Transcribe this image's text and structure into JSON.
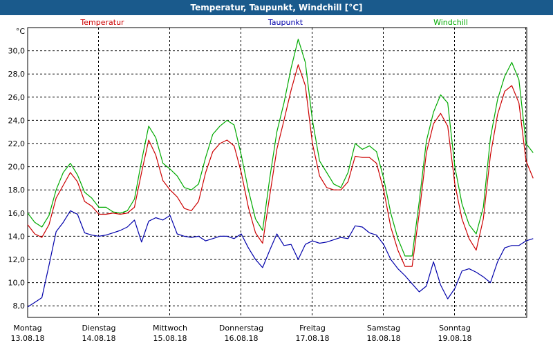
{
  "window": {
    "title": "Temperatur, Taupunkt, Windchill [°C]"
  },
  "chart_data": {
    "type": "line",
    "title": "Temperatur, Taupunkt, Windchill [°C]",
    "ylabel": "°C",
    "ylim": [
      7,
      32
    ],
    "yticks": [
      8.0,
      10.0,
      12.0,
      14.0,
      16.0,
      18.0,
      20.0,
      22.0,
      24.0,
      26.0,
      28.0,
      30.0
    ],
    "ytick_labels": [
      "8,0",
      "10,0",
      "12,0",
      "14,0",
      "16,0",
      "18,0",
      "20,0",
      "22,0",
      "24,0",
      "26,0",
      "28,0",
      "30,0"
    ],
    "xlim": [
      0,
      7
    ],
    "x_day_ticks": [
      {
        "x": 0,
        "day": "Montag",
        "date": "13.08.18"
      },
      {
        "x": 1,
        "day": "Dienstag",
        "date": "14.08.18"
      },
      {
        "x": 2,
        "day": "Mittwoch",
        "date": "15.08.18"
      },
      {
        "x": 3,
        "day": "Donnerstag",
        "date": "16.08.18"
      },
      {
        "x": 4,
        "day": "Freitag",
        "date": "17.08.18"
      },
      {
        "x": 5,
        "day": "Samstag",
        "date": "18.08.18"
      },
      {
        "x": 6,
        "day": "Sonntag",
        "date": "19.08.18"
      }
    ],
    "grid": true,
    "legend_placement": "top",
    "series": [
      {
        "name": "Temperatur",
        "color": "#cc0000",
        "points": [
          [
            0.0,
            15.0
          ],
          [
            0.1,
            14.2
          ],
          [
            0.2,
            13.9
          ],
          [
            0.3,
            15.0
          ],
          [
            0.4,
            17.3
          ],
          [
            0.5,
            18.4
          ],
          [
            0.6,
            19.5
          ],
          [
            0.7,
            18.7
          ],
          [
            0.8,
            17.0
          ],
          [
            0.9,
            16.6
          ],
          [
            1.0,
            15.9
          ],
          [
            1.1,
            15.9
          ],
          [
            1.2,
            16.0
          ],
          [
            1.3,
            15.9
          ],
          [
            1.4,
            16.0
          ],
          [
            1.5,
            16.5
          ],
          [
            1.6,
            19.5
          ],
          [
            1.7,
            22.3
          ],
          [
            1.8,
            21.0
          ],
          [
            1.9,
            18.8
          ],
          [
            2.0,
            18.0
          ],
          [
            2.1,
            17.4
          ],
          [
            2.2,
            16.4
          ],
          [
            2.3,
            16.2
          ],
          [
            2.4,
            17.0
          ],
          [
            2.5,
            19.5
          ],
          [
            2.6,
            21.3
          ],
          [
            2.7,
            22.0
          ],
          [
            2.8,
            22.3
          ],
          [
            2.9,
            21.8
          ],
          [
            3.0,
            19.5
          ],
          [
            3.1,
            16.5
          ],
          [
            3.2,
            14.3
          ],
          [
            3.3,
            13.4
          ],
          [
            3.4,
            17.5
          ],
          [
            3.5,
            21.5
          ],
          [
            3.6,
            24.0
          ],
          [
            3.7,
            26.6
          ],
          [
            3.8,
            28.8
          ],
          [
            3.9,
            27.0
          ],
          [
            4.0,
            22.0
          ],
          [
            4.1,
            19.2
          ],
          [
            4.2,
            18.2
          ],
          [
            4.3,
            18.0
          ],
          [
            4.4,
            18.0
          ],
          [
            4.5,
            18.7
          ],
          [
            4.6,
            20.9
          ],
          [
            4.7,
            20.8
          ],
          [
            4.8,
            20.8
          ],
          [
            4.9,
            20.3
          ],
          [
            5.0,
            18.0
          ],
          [
            5.1,
            14.8
          ],
          [
            5.2,
            12.8
          ],
          [
            5.3,
            11.4
          ],
          [
            5.4,
            11.4
          ],
          [
            5.5,
            16.0
          ],
          [
            5.6,
            21.2
          ],
          [
            5.7,
            23.7
          ],
          [
            5.8,
            24.6
          ],
          [
            5.9,
            23.5
          ],
          [
            6.0,
            18.5
          ],
          [
            6.1,
            15.5
          ],
          [
            6.2,
            13.8
          ],
          [
            6.3,
            12.8
          ],
          [
            6.4,
            15.5
          ],
          [
            6.5,
            21.0
          ],
          [
            6.6,
            24.5
          ],
          [
            6.7,
            26.5
          ],
          [
            6.8,
            27.0
          ],
          [
            6.9,
            25.5
          ],
          [
            7.0,
            20.5
          ],
          [
            7.1,
            19.0
          ]
        ]
      },
      {
        "name": "Taupunkt",
        "color": "#0000aa",
        "points": [
          [
            0.0,
            7.9
          ],
          [
            0.1,
            8.3
          ],
          [
            0.2,
            8.7
          ],
          [
            0.3,
            11.5
          ],
          [
            0.4,
            14.4
          ],
          [
            0.5,
            15.2
          ],
          [
            0.6,
            16.2
          ],
          [
            0.7,
            15.9
          ],
          [
            0.8,
            14.3
          ],
          [
            0.9,
            14.1
          ],
          [
            1.0,
            14.0
          ],
          [
            1.1,
            14.1
          ],
          [
            1.2,
            14.3
          ],
          [
            1.3,
            14.5
          ],
          [
            1.4,
            14.8
          ],
          [
            1.5,
            15.4
          ],
          [
            1.6,
            13.5
          ],
          [
            1.7,
            15.3
          ],
          [
            1.8,
            15.6
          ],
          [
            1.9,
            15.4
          ],
          [
            2.0,
            15.8
          ],
          [
            2.1,
            14.2
          ],
          [
            2.2,
            14.0
          ],
          [
            2.3,
            13.9
          ],
          [
            2.4,
            14.0
          ],
          [
            2.5,
            13.6
          ],
          [
            2.6,
            13.8
          ],
          [
            2.7,
            14.0
          ],
          [
            2.8,
            14.0
          ],
          [
            2.9,
            13.8
          ],
          [
            3.0,
            14.2
          ],
          [
            3.1,
            13.0
          ],
          [
            3.2,
            12.0
          ],
          [
            3.3,
            11.3
          ],
          [
            3.4,
            12.8
          ],
          [
            3.5,
            14.2
          ],
          [
            3.6,
            13.2
          ],
          [
            3.7,
            13.3
          ],
          [
            3.8,
            12.0
          ],
          [
            3.9,
            13.3
          ],
          [
            4.0,
            13.6
          ],
          [
            4.1,
            13.4
          ],
          [
            4.2,
            13.5
          ],
          [
            4.3,
            13.7
          ],
          [
            4.4,
            13.9
          ],
          [
            4.5,
            13.8
          ],
          [
            4.6,
            14.9
          ],
          [
            4.7,
            14.8
          ],
          [
            4.8,
            14.3
          ],
          [
            4.9,
            14.1
          ],
          [
            5.0,
            13.3
          ],
          [
            5.1,
            12.0
          ],
          [
            5.2,
            11.2
          ],
          [
            5.3,
            10.6
          ],
          [
            5.4,
            9.9
          ],
          [
            5.5,
            9.2
          ],
          [
            5.6,
            9.7
          ],
          [
            5.7,
            11.8
          ],
          [
            5.8,
            9.8
          ],
          [
            5.9,
            8.6
          ],
          [
            6.0,
            9.5
          ],
          [
            6.1,
            11.0
          ],
          [
            6.2,
            11.2
          ],
          [
            6.3,
            10.9
          ],
          [
            6.4,
            10.5
          ],
          [
            6.5,
            10.0
          ],
          [
            6.6,
            11.8
          ],
          [
            6.7,
            13.0
          ],
          [
            6.8,
            13.2
          ],
          [
            6.9,
            13.2
          ],
          [
            7.0,
            13.6
          ],
          [
            7.1,
            13.8
          ]
        ]
      },
      {
        "name": "Windchill",
        "color": "#00aa00",
        "points": [
          [
            0.0,
            16.0
          ],
          [
            0.1,
            15.2
          ],
          [
            0.2,
            14.8
          ],
          [
            0.3,
            15.8
          ],
          [
            0.4,
            18.0
          ],
          [
            0.5,
            19.5
          ],
          [
            0.6,
            20.3
          ],
          [
            0.7,
            19.3
          ],
          [
            0.8,
            17.8
          ],
          [
            0.9,
            17.3
          ],
          [
            1.0,
            16.5
          ],
          [
            1.1,
            16.5
          ],
          [
            1.2,
            16.1
          ],
          [
            1.3,
            16.0
          ],
          [
            1.4,
            16.2
          ],
          [
            1.5,
            17.2
          ],
          [
            1.6,
            20.5
          ],
          [
            1.7,
            23.5
          ],
          [
            1.8,
            22.5
          ],
          [
            1.9,
            20.3
          ],
          [
            2.0,
            19.8
          ],
          [
            2.1,
            19.2
          ],
          [
            2.2,
            18.2
          ],
          [
            2.3,
            18.0
          ],
          [
            2.4,
            18.5
          ],
          [
            2.5,
            20.8
          ],
          [
            2.6,
            22.8
          ],
          [
            2.7,
            23.5
          ],
          [
            2.8,
            24.0
          ],
          [
            2.9,
            23.6
          ],
          [
            3.0,
            21.0
          ],
          [
            3.1,
            18.0
          ],
          [
            3.2,
            15.5
          ],
          [
            3.3,
            14.5
          ],
          [
            3.4,
            19.0
          ],
          [
            3.5,
            23.0
          ],
          [
            3.6,
            25.5
          ],
          [
            3.7,
            28.5
          ],
          [
            3.8,
            31.0
          ],
          [
            3.9,
            29.0
          ],
          [
            4.0,
            24.0
          ],
          [
            4.1,
            20.5
          ],
          [
            4.2,
            19.5
          ],
          [
            4.3,
            18.5
          ],
          [
            4.4,
            18.2
          ],
          [
            4.5,
            19.5
          ],
          [
            4.6,
            22.0
          ],
          [
            4.7,
            21.5
          ],
          [
            4.8,
            21.8
          ],
          [
            4.9,
            21.3
          ],
          [
            5.0,
            19.0
          ],
          [
            5.1,
            16.0
          ],
          [
            5.2,
            13.8
          ],
          [
            5.3,
            12.3
          ],
          [
            5.4,
            12.3
          ],
          [
            5.5,
            17.0
          ],
          [
            5.6,
            22.2
          ],
          [
            5.7,
            24.7
          ],
          [
            5.8,
            26.2
          ],
          [
            5.9,
            25.5
          ],
          [
            6.0,
            20.0
          ],
          [
            6.1,
            16.8
          ],
          [
            6.2,
            15.0
          ],
          [
            6.3,
            14.2
          ],
          [
            6.4,
            16.5
          ],
          [
            6.5,
            22.5
          ],
          [
            6.6,
            25.8
          ],
          [
            6.7,
            27.8
          ],
          [
            6.8,
            29.0
          ],
          [
            6.9,
            27.5
          ],
          [
            7.0,
            22.0
          ],
          [
            7.1,
            21.2
          ]
        ]
      }
    ]
  }
}
